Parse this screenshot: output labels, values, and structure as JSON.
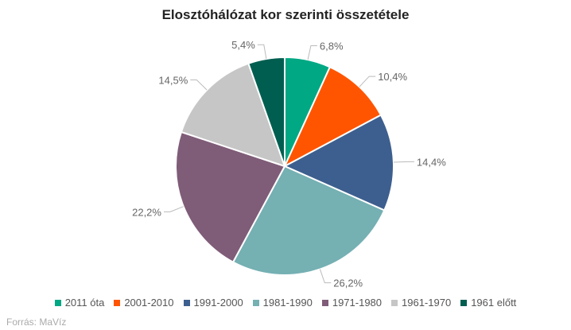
{
  "chart_data": {
    "type": "pie",
    "title": "Elosztóhálózat kor szerinti összetétele",
    "unit": "%",
    "categories": [
      "2011 óta",
      "2001-2010",
      "1991-2000",
      "1981-1990",
      "1971-1980",
      "1961-1970",
      "1961 előtt"
    ],
    "values": [
      6.8,
      10.4,
      14.4,
      26.2,
      22.2,
      14.5,
      5.4
    ],
    "data_labels": [
      "6,8%",
      "10,4%",
      "14,4%",
      "26,2%",
      "22,2%",
      "14,5%",
      "5,4%"
    ],
    "colors": [
      "#00a884",
      "#ff5500",
      "#3d5f8f",
      "#75b0b3",
      "#7f5c78",
      "#c6c6c6",
      "#005e50"
    ],
    "start_angle_deg": 0,
    "direction": "clockwise",
    "legend_position": "bottom"
  },
  "source": "Forrás: MaVíz"
}
